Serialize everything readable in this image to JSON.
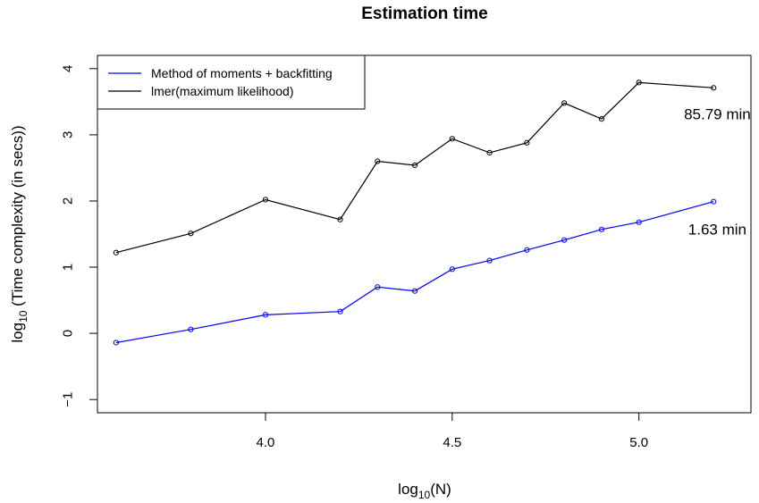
{
  "chart_data": {
    "type": "line",
    "title": "Estimation time",
    "xlabel": {
      "pre": "log",
      "sub": "10",
      "post": "(N)"
    },
    "ylabel": {
      "pre": "log",
      "sub": "10",
      "post": " (Time complexity (in secs))"
    },
    "xlim": [
      3.55,
      5.3
    ],
    "ylim": [
      -1.2,
      4.2
    ],
    "x_ticks": [
      4.0,
      4.5,
      5.0
    ],
    "x_tick_labels": [
      "4.0",
      "4.5",
      "5.0"
    ],
    "y_ticks": [
      -1,
      0,
      1,
      2,
      3,
      4
    ],
    "y_tick_labels": [
      "−1",
      "0",
      "1",
      "2",
      "3",
      "4"
    ],
    "grid": false,
    "legend_position": "top-left",
    "x": [
      3.6,
      3.8,
      4.0,
      4.2,
      4.3,
      4.4,
      4.5,
      4.6,
      4.7,
      4.8,
      4.9,
      5.0,
      5.2
    ],
    "series": [
      {
        "name": "Method of moments + backfitting",
        "color": "#0000ff",
        "values": [
          -0.14,
          0.06,
          0.28,
          0.33,
          0.7,
          0.64,
          0.97,
          1.1,
          1.26,
          1.41,
          1.57,
          1.68,
          1.99
        ]
      },
      {
        "name": "lmer(maximum likelihood)",
        "color": "#000000",
        "values": [
          1.22,
          1.51,
          2.02,
          1.72,
          2.6,
          2.54,
          2.94,
          2.73,
          2.88,
          3.48,
          3.24,
          3.79,
          3.71
        ]
      }
    ],
    "annotations": [
      {
        "text": "85.79 min",
        "x": 5.21,
        "y": 3.31
      },
      {
        "text": "1.63 min",
        "x": 5.21,
        "y": 1.57
      }
    ]
  }
}
